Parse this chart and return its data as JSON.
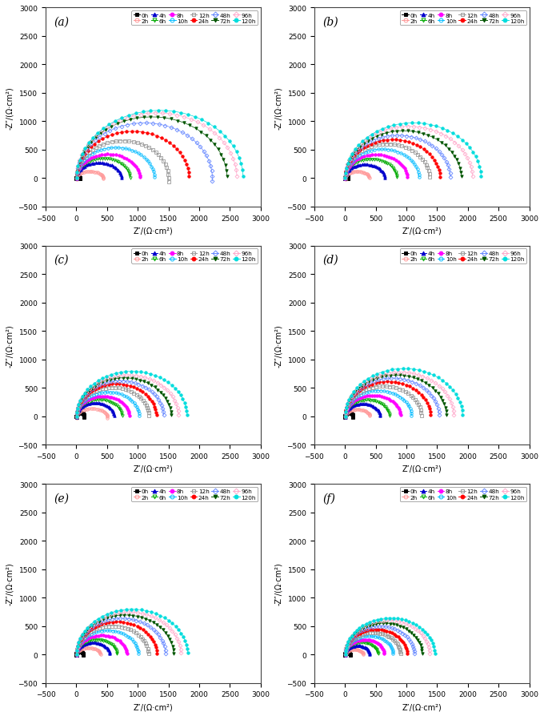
{
  "subplots": [
    "(a)",
    "(b)",
    "(c)",
    "(d)",
    "(e)",
    "(f)"
  ],
  "xlabel": "Z’/(Ω·cm²)",
  "ylabel": "-Z″/(Ω·cm²)",
  "xlim": [
    -500,
    3000
  ],
  "ylim": [
    -500,
    3000
  ],
  "xticks": [
    -500,
    0,
    500,
    1000,
    1500,
    2000,
    2500,
    3000
  ],
  "yticks": [
    -500,
    0,
    500,
    1000,
    1500,
    2000,
    2500,
    3000
  ],
  "series": [
    {
      "label": "0h",
      "color": "#000000",
      "marker": "s",
      "filled": true
    },
    {
      "label": "2h",
      "color": "#FF9999",
      "marker": "o",
      "filled": false
    },
    {
      "label": "4h",
      "color": "#0000CC",
      "marker": "^",
      "filled": true
    },
    {
      "label": "6h",
      "color": "#00AA00",
      "marker": "v",
      "filled": false
    },
    {
      "label": "8h",
      "color": "#FF00FF",
      "marker": "o",
      "filled": true
    },
    {
      "label": "10h",
      "color": "#00BBFF",
      "marker": "o",
      "filled": false
    },
    {
      "label": "12h",
      "color": "#999999",
      "marker": "s",
      "filled": false
    },
    {
      "label": "24h",
      "color": "#FF0000",
      "marker": "o",
      "filled": true
    },
    {
      "label": "48h",
      "color": "#6688FF",
      "marker": "D",
      "filled": false
    },
    {
      "label": "72h",
      "color": "#005500",
      "marker": "v",
      "filled": true
    },
    {
      "label": "96h",
      "color": "#FFAACC",
      "marker": "D",
      "filled": false
    },
    {
      "label": "120h",
      "color": "#00DDDD",
      "marker": "o",
      "filled": true
    }
  ],
  "panel_arc_params": {
    "a": [
      [
        28,
        28,
        185,
        -10,
        25,
        0
      ],
      [
        220,
        218,
        190,
        -5,
        30,
        0
      ],
      [
        370,
        365,
        183,
        2,
        35,
        0
      ],
      [
        440,
        435,
        182,
        2,
        35,
        0
      ],
      [
        520,
        515,
        181,
        2,
        35,
        0
      ],
      [
        640,
        635,
        180,
        2,
        35,
        0
      ],
      [
        755,
        748,
        180,
        -5,
        35,
        0
      ],
      [
        920,
        915,
        180,
        2,
        35,
        0
      ],
      [
        1110,
        1105,
        180,
        -3,
        35,
        0
      ],
      [
        1230,
        1225,
        180,
        2,
        35,
        0
      ],
      [
        1310,
        1305,
        180,
        2,
        35,
        0
      ],
      [
        1360,
        1355,
        180,
        2,
        35,
        0
      ]
    ],
    "b": [
      [
        28,
        28,
        185,
        -10,
        25,
        0
      ],
      [
        200,
        197,
        188,
        5,
        30,
        0
      ],
      [
        325,
        322,
        183,
        3,
        35,
        0
      ],
      [
        425,
        422,
        182,
        3,
        35,
        0
      ],
      [
        510,
        507,
        181,
        3,
        35,
        0
      ],
      [
        605,
        602,
        180,
        2,
        35,
        0
      ],
      [
        690,
        687,
        180,
        2,
        35,
        0
      ],
      [
        775,
        772,
        180,
        2,
        35,
        0
      ],
      [
        860,
        857,
        180,
        2,
        35,
        0
      ],
      [
        950,
        947,
        180,
        2,
        35,
        0
      ],
      [
        1040,
        1037,
        180,
        2,
        35,
        0
      ],
      [
        1110,
        1107,
        180,
        2,
        35,
        0
      ]
    ],
    "c": [
      [
        65,
        65,
        195,
        -10,
        22,
        0
      ],
      [
        255,
        250,
        190,
        -10,
        30,
        0
      ],
      [
        310,
        305,
        183,
        3,
        35,
        0
      ],
      [
        375,
        370,
        182,
        3,
        35,
        0
      ],
      [
        435,
        430,
        181,
        3,
        35,
        0
      ],
      [
        515,
        510,
        180,
        2,
        35,
        0
      ],
      [
        595,
        590,
        180,
        2,
        35,
        0
      ],
      [
        655,
        650,
        180,
        2,
        35,
        0
      ],
      [
        715,
        710,
        180,
        2,
        35,
        0
      ],
      [
        775,
        770,
        180,
        2,
        35,
        0
      ],
      [
        835,
        830,
        180,
        2,
        35,
        0
      ],
      [
        905,
        900,
        180,
        2,
        35,
        0
      ]
    ],
    "d": [
      [
        65,
        65,
        195,
        -10,
        22,
        0
      ],
      [
        205,
        200,
        188,
        5,
        30,
        0
      ],
      [
        290,
        285,
        183,
        3,
        35,
        0
      ],
      [
        365,
        360,
        182,
        3,
        35,
        0
      ],
      [
        455,
        450,
        181,
        3,
        35,
        0
      ],
      [
        545,
        540,
        180,
        2,
        35,
        0
      ],
      [
        625,
        620,
        180,
        2,
        35,
        0
      ],
      [
        700,
        695,
        180,
        2,
        35,
        0
      ],
      [
        770,
        765,
        180,
        2,
        35,
        0
      ],
      [
        830,
        825,
        180,
        2,
        35,
        0
      ],
      [
        890,
        885,
        180,
        2,
        35,
        0
      ],
      [
        960,
        955,
        180,
        2,
        35,
        0
      ]
    ],
    "e": [
      [
        55,
        55,
        195,
        -10,
        22,
        0
      ],
      [
        200,
        195,
        188,
        5,
        30,
        0
      ],
      [
        275,
        270,
        183,
        3,
        35,
        0
      ],
      [
        335,
        330,
        182,
        3,
        35,
        0
      ],
      [
        415,
        410,
        181,
        3,
        35,
        0
      ],
      [
        510,
        505,
        180,
        2,
        35,
        0
      ],
      [
        590,
        585,
        180,
        2,
        35,
        0
      ],
      [
        660,
        655,
        180,
        2,
        35,
        0
      ],
      [
        730,
        725,
        180,
        2,
        35,
        0
      ],
      [
        795,
        790,
        180,
        2,
        35,
        0
      ],
      [
        855,
        850,
        180,
        2,
        35,
        0
      ],
      [
        910,
        905,
        180,
        2,
        35,
        0
      ]
    ],
    "f": [
      [
        42,
        42,
        195,
        -10,
        22,
        0
      ],
      [
        153,
        148,
        188,
        5,
        30,
        0
      ],
      [
        205,
        200,
        183,
        3,
        35,
        0
      ],
      [
        272,
        267,
        182,
        3,
        35,
        0
      ],
      [
        323,
        318,
        181,
        3,
        35,
        0
      ],
      [
        395,
        390,
        180,
        2,
        35,
        0
      ],
      [
        455,
        450,
        180,
        2,
        35,
        0
      ],
      [
        508,
        503,
        180,
        2,
        35,
        0
      ],
      [
        570,
        565,
        180,
        2,
        35,
        0
      ],
      [
        632,
        627,
        180,
        2,
        35,
        0
      ],
      [
        693,
        688,
        180,
        2,
        35,
        0
      ],
      [
        735,
        730,
        180,
        2,
        35,
        0
      ]
    ]
  },
  "ry_scale": {
    "a": [
      1.0,
      0.55,
      0.75,
      0.8,
      0.82,
      0.85,
      0.88,
      0.9,
      0.88,
      0.88,
      0.88,
      0.88
    ],
    "b": [
      1.0,
      0.6,
      0.75,
      0.8,
      0.82,
      0.85,
      0.88,
      0.88,
      0.88,
      0.88,
      0.88,
      0.88
    ],
    "c": [
      1.0,
      0.55,
      0.78,
      0.8,
      0.82,
      0.84,
      0.86,
      0.88,
      0.88,
      0.88,
      0.88,
      0.88
    ],
    "d": [
      1.0,
      0.6,
      0.78,
      0.8,
      0.82,
      0.84,
      0.86,
      0.88,
      0.88,
      0.88,
      0.88,
      0.88
    ],
    "e": [
      1.0,
      0.6,
      0.78,
      0.8,
      0.82,
      0.84,
      0.86,
      0.88,
      0.88,
      0.88,
      0.88,
      0.88
    ],
    "f": [
      1.0,
      0.6,
      0.78,
      0.8,
      0.82,
      0.84,
      0.86,
      0.88,
      0.88,
      0.88,
      0.88,
      0.88
    ]
  }
}
